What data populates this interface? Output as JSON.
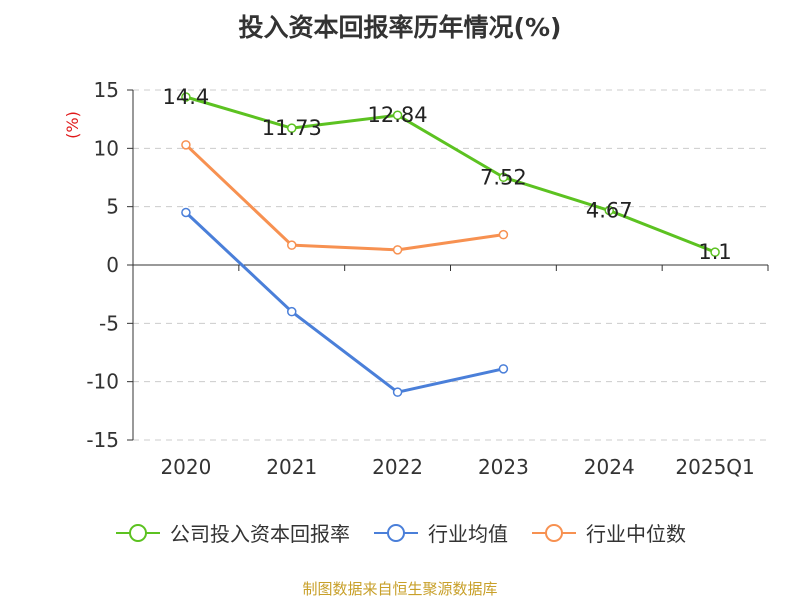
{
  "title": "投入资本回报率历年情况(%)",
  "source_note": "制图数据来自恒生聚源数据库",
  "colors": {
    "company": "#5cc221",
    "industry_avg": "#4a7fd9",
    "industry_median": "#f79151",
    "axis": "#333333",
    "grid": "#cccccc",
    "unit": "#e0191a"
  },
  "chart_data": {
    "type": "line",
    "title": "投入资本回报率历年情况(%)",
    "xlabel": "",
    "ylabel": "(%)",
    "categories": [
      "2020",
      "2021",
      "2022",
      "2023",
      "2024",
      "2025Q1"
    ],
    "ylim": [
      -15,
      15
    ],
    "yticks": [
      15,
      10,
      5,
      0,
      -5,
      -10,
      -15
    ],
    "grid": true,
    "legend_position": "bottom",
    "series": [
      {
        "name": "公司投入资本回报率",
        "values": [
          14.4,
          11.73,
          12.84,
          7.52,
          4.67,
          1.1
        ],
        "labels": [
          "14.4",
          "11.73",
          "12.84",
          "7.52",
          "4.67",
          "1.1"
        ],
        "color": "#5cc221"
      },
      {
        "name": "行业均值",
        "values": [
          4.5,
          -4.0,
          -10.9,
          -8.9,
          null,
          null
        ],
        "color": "#4a7fd9"
      },
      {
        "name": "行业中位数",
        "values": [
          10.3,
          1.7,
          1.3,
          2.6,
          null,
          null
        ],
        "color": "#f79151"
      }
    ]
  }
}
